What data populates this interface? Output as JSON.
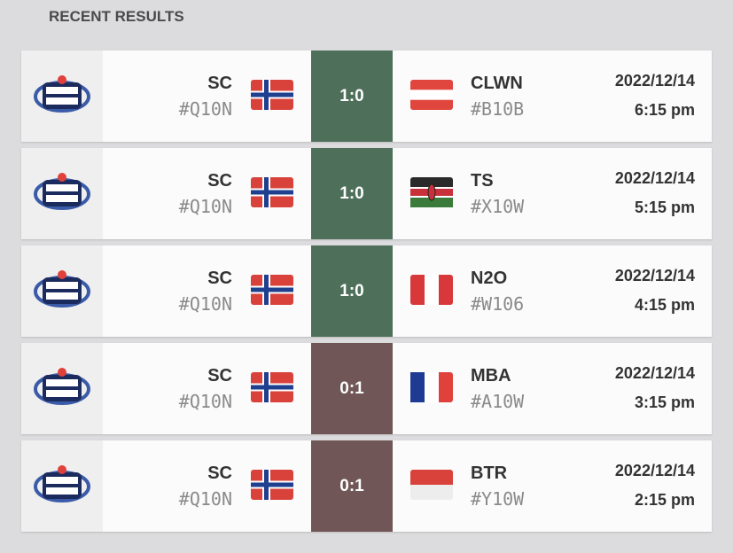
{
  "title": "RECENT RESULTS",
  "results": [
    {
      "team1": {
        "name": "SC",
        "tag": "#Q10N"
      },
      "score": "1:0",
      "team2": {
        "name": "CLWN",
        "tag": "#B10B"
      },
      "date": "2022/12/14",
      "time": "6:15 pm"
    },
    {
      "team1": {
        "name": "SC",
        "tag": "#Q10N"
      },
      "score": "1:0",
      "team2": {
        "name": "TS",
        "tag": "#X10W"
      },
      "date": "2022/12/14",
      "time": "5:15 pm"
    },
    {
      "team1": {
        "name": "SC",
        "tag": "#Q10N"
      },
      "score": "1:0",
      "team2": {
        "name": "N2O",
        "tag": "#W106"
      },
      "date": "2022/12/14",
      "time": "4:15 pm"
    },
    {
      "team1": {
        "name": "SC",
        "tag": "#Q10N"
      },
      "score": "0:1",
      "team2": {
        "name": "MBA",
        "tag": "#A10W"
      },
      "date": "2022/12/14",
      "time": "3:15 pm"
    },
    {
      "team1": {
        "name": "SC",
        "tag": "#Q10N"
      },
      "score": "0:1",
      "team2": {
        "name": "BTR",
        "tag": "#Y10W"
      },
      "date": "2022/12/14",
      "time": "2:15 pm"
    }
  ]
}
